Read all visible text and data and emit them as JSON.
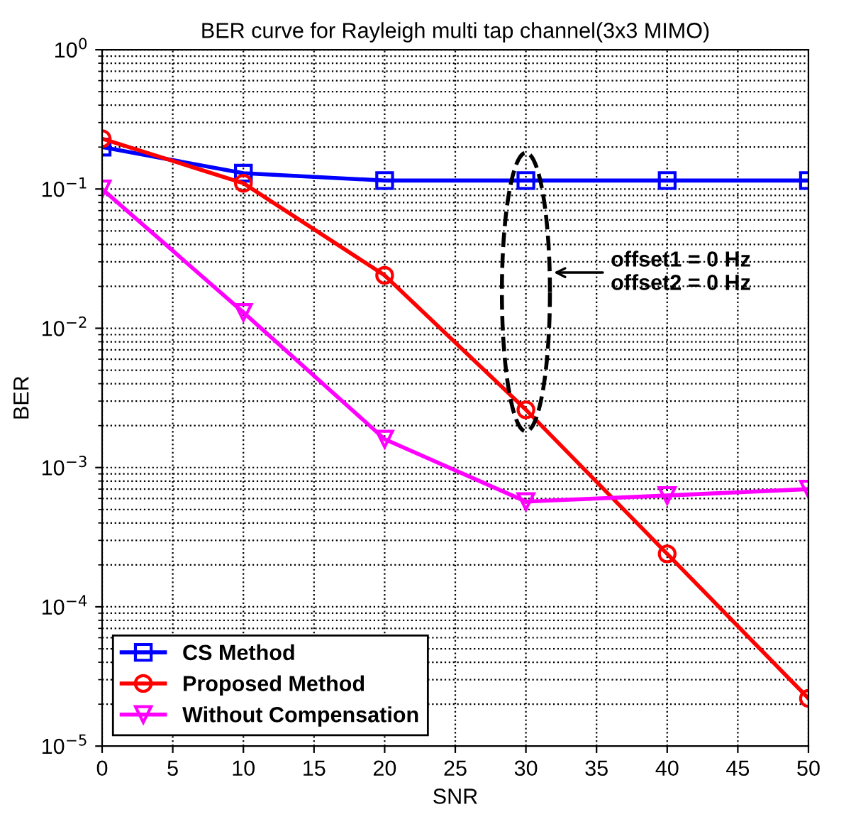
{
  "chart_data": {
    "type": "line",
    "title": "BER curve for Rayleigh multi tap channel(3x3 MIMO)",
    "xlabel": "SNR",
    "ylabel": "BER",
    "x": [
      0,
      10,
      20,
      30,
      40,
      50
    ],
    "series": [
      {
        "name": "CS Method",
        "color": "#0000ff",
        "marker": "square",
        "values": [
          0.2,
          0.13,
          0.115,
          0.115,
          0.115,
          0.115
        ]
      },
      {
        "name": "Proposed Method",
        "color": "#ff0000",
        "marker": "circle",
        "values": [
          0.23,
          0.11,
          0.024,
          0.0026,
          0.00024,
          2.2e-05
        ]
      },
      {
        "name": "Without Compensation",
        "color": "#ff00ff",
        "marker": "triangle",
        "values": [
          0.1,
          0.013,
          0.0016,
          0.00057,
          0.00063,
          0.0007
        ]
      }
    ],
    "log": "y",
    "xlim": [
      0,
      50
    ],
    "xticks": [
      0,
      5,
      10,
      15,
      20,
      25,
      30,
      35,
      40,
      45,
      50
    ],
    "ylim": [
      1e-05,
      1
    ],
    "yticks": [
      {
        "value": 1e-05,
        "label": "10$^{−5}$"
      },
      {
        "value": 0.0001,
        "label": "10$^{−4}$"
      },
      {
        "value": 0.001,
        "label": "10$^{−3}$"
      },
      {
        "value": 0.01,
        "label": "10$^{−2}$"
      },
      {
        "value": 0.1,
        "label": "10$^{−1}$"
      },
      {
        "value": 1,
        "label": "10$^{0}$"
      }
    ],
    "grid": true,
    "legend": "bottom left",
    "line_style": "solid",
    "annotations": [
      "offset1 = 0 Hz\noffset2 = 0 Hz"
    ]
  }
}
